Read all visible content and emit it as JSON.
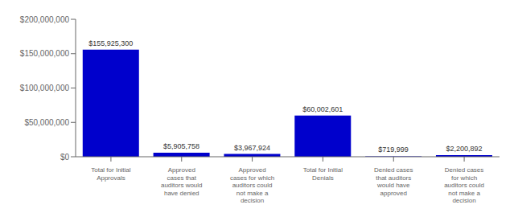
{
  "chart_data": {
    "type": "bar",
    "categories": [
      "Total for Initial\nApprovals",
      "Approved\ncases that\nauditors would\nhave denied",
      "Approved\ncases for which\nauditors could\nnot make a\ndecision",
      "Total for Initial\nDenials",
      "Denied cases\nthat auditors\nwould have\napproved",
      "Denied cases\nfor which\nauditors could\nnot make a\ndecision"
    ],
    "values": [
      155925300,
      5905758,
      3967924,
      60002601,
      719999,
      2200892
    ],
    "value_labels": [
      "$155,925,300",
      "$5,905,758",
      "$3,967,924",
      "$60,002,601",
      "$719,999",
      "$2,200,892"
    ],
    "color": "#0000CC",
    "ylim": [
      0,
      200000000
    ],
    "yticks": [
      {
        "value": 0,
        "label": "$0"
      },
      {
        "value": 50000000,
        "label": "$50,000,000"
      },
      {
        "value": 100000000,
        "label": "$100,000,000"
      },
      {
        "value": 150000000,
        "label": "$150,000,000"
      },
      {
        "value": 200000000,
        "label": "$200,000,000"
      }
    ],
    "data_labels": true,
    "grid": false
  }
}
